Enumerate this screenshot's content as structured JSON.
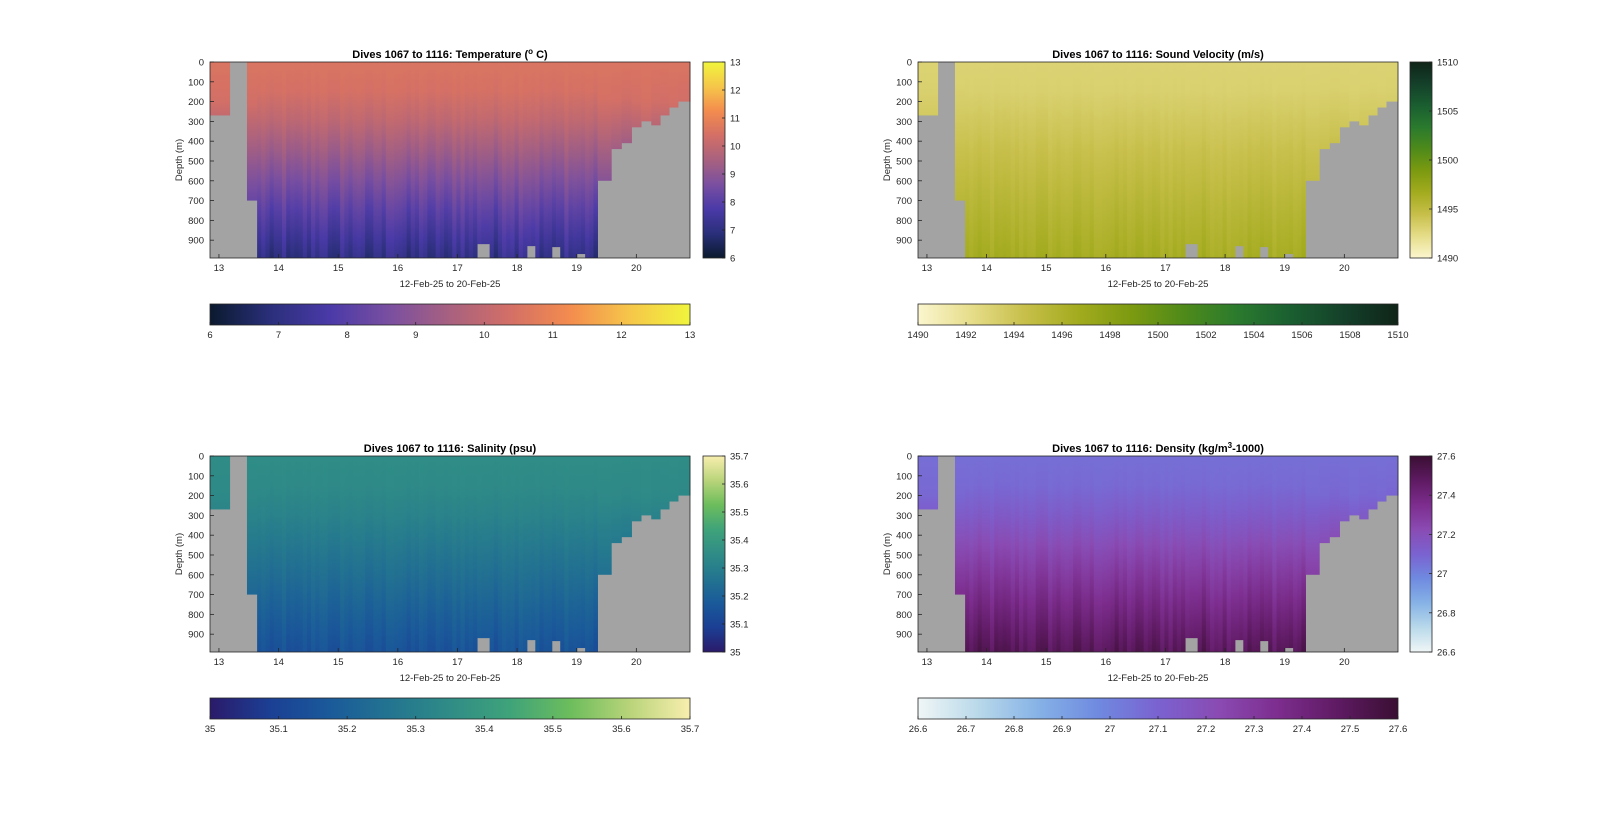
{
  "figure": {
    "window_title": ""
  },
  "chart_data": [
    {
      "id": "temperature",
      "type": "heatmap",
      "title_prefix": "Dives 1067 to 1116: Temperature (",
      "title_sup": "o",
      "title_suffix": " C)",
      "xlabel": "12-Feb-25 to 20-Feb-25",
      "ylabel": "Depth (m)",
      "xticks": [
        "13",
        "14",
        "15",
        "16",
        "17",
        "18",
        "19",
        "20"
      ],
      "yticks": [
        "0",
        "100",
        "200",
        "300",
        "400",
        "500",
        "600",
        "700",
        "800",
        "900"
      ],
      "xlim": [
        12.85,
        20.9
      ],
      "ylim": [
        0,
        990
      ],
      "variable": "temperature",
      "units": "°C",
      "clim": [
        6,
        13
      ],
      "colorbar_ticks": [
        "6",
        "7",
        "8",
        "9",
        "10",
        "11",
        "12",
        "13"
      ],
      "colorbar_ticks_horizontal": [
        "6",
        "7",
        "8",
        "9",
        "10",
        "11",
        "12",
        "13"
      ],
      "colormap": [
        "#0b1a2e",
        "#2a2f7a",
        "#4a3aa8",
        "#7a4fa0",
        "#a8617f",
        "#d36f66",
        "#f38c4e",
        "#f6c64a",
        "#f0f53c"
      ],
      "surface_value": 10.55,
      "deep_value": 7.1,
      "nodata_color": "#a3a3a3"
    },
    {
      "id": "sound_velocity",
      "type": "heatmap",
      "title_prefix": "Dives 1067 to 1116: Sound Velocity (m/s)",
      "title_sup": "",
      "title_suffix": "",
      "xlabel": "12-Feb-25 to 20-Feb-25",
      "ylabel": "Depth (m)",
      "xticks": [
        "13",
        "14",
        "15",
        "16",
        "17",
        "18",
        "19",
        "20"
      ],
      "yticks": [
        "0",
        "100",
        "200",
        "300",
        "400",
        "500",
        "600",
        "700",
        "800",
        "900"
      ],
      "xlim": [
        12.85,
        20.9
      ],
      "ylim": [
        0,
        990
      ],
      "variable": "sound velocity",
      "units": "m/s",
      "clim": [
        1490,
        1510
      ],
      "colorbar_ticks": [
        "1490",
        "1495",
        "1500",
        "1505",
        "1510"
      ],
      "colorbar_ticks_horizontal": [
        "1490",
        "1492",
        "1494",
        "1496",
        "1498",
        "1500",
        "1502",
        "1504",
        "1506",
        "1508",
        "1510"
      ],
      "colormap": [
        "#fbf6cf",
        "#e6dd8a",
        "#c7bf4a",
        "#a3ab1e",
        "#7c9a10",
        "#4e8a1a",
        "#2a7a2e",
        "#1a5e30",
        "#14402a",
        "#0f2418"
      ],
      "surface_value": 1493.0,
      "deep_value": 1496.5,
      "nodata_color": "#a3a3a3"
    },
    {
      "id": "salinity",
      "type": "heatmap",
      "title_prefix": "Dives 1067 to 1116: Salinity (psu)",
      "title_sup": "",
      "title_suffix": "",
      "xlabel": "12-Feb-25 to 20-Feb-25",
      "ylabel": "Depth (m)",
      "xticks": [
        "13",
        "14",
        "15",
        "16",
        "17",
        "18",
        "19",
        "20"
      ],
      "yticks": [
        "0",
        "100",
        "200",
        "300",
        "400",
        "500",
        "600",
        "700",
        "800",
        "900"
      ],
      "xlim": [
        12.85,
        20.9
      ],
      "ylim": [
        0,
        990
      ],
      "variable": "salinity",
      "units": "psu",
      "clim": [
        35,
        35.7
      ],
      "colorbar_ticks": [
        "35",
        "35.1",
        "35.2",
        "35.3",
        "35.4",
        "35.5",
        "35.6",
        "35.7"
      ],
      "colorbar_ticks_horizontal": [
        "35",
        "35.1",
        "35.2",
        "35.3",
        "35.4",
        "35.5",
        "35.6",
        "35.7"
      ],
      "colormap": [
        "#2b1a6a",
        "#1b3f94",
        "#1a5a9a",
        "#237490",
        "#2f8c86",
        "#3fa37a",
        "#6cbd5c",
        "#b9d47a",
        "#f8eeae"
      ],
      "surface_value": 35.35,
      "deep_value": 35.15,
      "nodata_color": "#a3a3a3"
    },
    {
      "id": "density",
      "type": "heatmap",
      "title_prefix": "Dives 1067 to 1116: Density (kg/m",
      "title_sup": "3",
      "title_suffix": "-1000)",
      "xlabel": "12-Feb-25 to 20-Feb-25",
      "ylabel": "Depth (m)",
      "xticks": [
        "13",
        "14",
        "15",
        "16",
        "17",
        "18",
        "19",
        "20"
      ],
      "yticks": [
        "0",
        "100",
        "200",
        "300",
        "400",
        "500",
        "600",
        "700",
        "800",
        "900"
      ],
      "xlim": [
        12.85,
        20.9
      ],
      "ylim": [
        0,
        990
      ],
      "variable": "density",
      "units": "kg/m3-1000",
      "clim": [
        26.6,
        27.6
      ],
      "colorbar_ticks": [
        "26.6",
        "26.8",
        "27",
        "27.2",
        "27.4",
        "27.6"
      ],
      "colorbar_ticks_horizontal": [
        "26.6",
        "26.7",
        "26.8",
        "26.9",
        "27",
        "27.1",
        "27.2",
        "27.3",
        "27.4",
        "27.5",
        "27.6"
      ],
      "colormap": [
        "#f0f6f6",
        "#b9d9ea",
        "#86b2e6",
        "#6f8ae0",
        "#7a62d0",
        "#8a4bb3",
        "#7d2d8e",
        "#5e1a62",
        "#3a0f33"
      ],
      "surface_value": 27.06,
      "deep_value": 27.5,
      "nodata_color": "#a3a3a3"
    }
  ]
}
